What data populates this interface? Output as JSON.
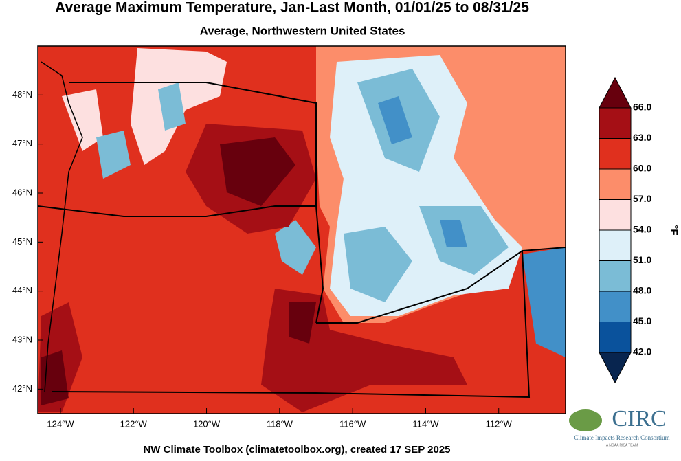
{
  "header": {
    "title": "Average Maximum Temperature, Jan-Last Month, 01/01/25 to 08/31/25",
    "subtitle": "Average, Northwestern United States"
  },
  "map": {
    "xlim": [
      -124.62,
      -110.17
    ],
    "ylim": [
      41.5,
      49.0
    ],
    "xticks": [
      {
        "value": -124,
        "label": "124°W"
      },
      {
        "value": -122,
        "label": "122°W"
      },
      {
        "value": -120,
        "label": "120°W"
      },
      {
        "value": -118,
        "label": "118°W"
      },
      {
        "value": -116,
        "label": "116°W"
      },
      {
        "value": -114,
        "label": "114°W"
      },
      {
        "value": -112,
        "label": "112°W"
      }
    ],
    "yticks": [
      {
        "value": 48,
        "label": "48°N"
      },
      {
        "value": 47,
        "label": "47°N"
      },
      {
        "value": 46,
        "label": "46°N"
      },
      {
        "value": 45,
        "label": "45°N"
      },
      {
        "value": 44,
        "label": "44°N"
      },
      {
        "value": 43,
        "label": "43°N"
      },
      {
        "value": 42,
        "label": "42°N"
      }
    ]
  },
  "colorbar": {
    "label": "°F",
    "ticks": [
      {
        "value": 66,
        "label": "66.0"
      },
      {
        "value": 63,
        "label": "63.0"
      },
      {
        "value": 60,
        "label": "60.0"
      },
      {
        "value": 57,
        "label": "57.0"
      },
      {
        "value": 54,
        "label": "54.0"
      },
      {
        "value": 51,
        "label": "51.0"
      },
      {
        "value": 48,
        "label": "48.0"
      },
      {
        "value": 45,
        "label": "45.0"
      },
      {
        "value": 42,
        "label": "42.0"
      }
    ],
    "colors": [
      "#67000d",
      "#a50f15",
      "#e0301e",
      "#fc8d6a",
      "#fde0e0",
      "#def0f9",
      "#7bbcd6",
      "#4290c8",
      "#0a529c",
      "#08254f"
    ]
  },
  "footer": "NW Climate Toolbox (climatetoolbox.org), created 17 SEP 2025",
  "logo": {
    "name": "CIRC",
    "full": "Climate Impacts Research Consortium",
    "tag": "A NOAA RISA TEAM"
  }
}
